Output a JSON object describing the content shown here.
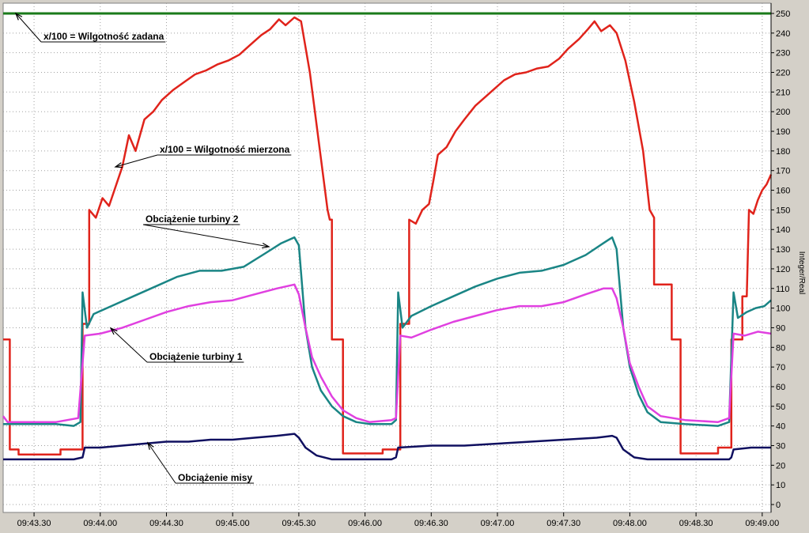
{
  "chart_data": {
    "type": "line",
    "ylabel": "Integer/Real",
    "ylim": [
      0,
      250
    ],
    "yticks": [
      0,
      10,
      20,
      30,
      40,
      50,
      60,
      70,
      80,
      90,
      100,
      110,
      120,
      130,
      140,
      150,
      160,
      170,
      180,
      190,
      200,
      210,
      220,
      230,
      240,
      250
    ],
    "xlim": [
      "09:43:16",
      "09:49:04"
    ],
    "xticks": [
      "09:43.30",
      "09:44.00",
      "09:44.30",
      "09:45.00",
      "09:45.30",
      "09:46.00",
      "09:46.30",
      "09:47.00",
      "09:47.30",
      "09:48.00",
      "09:48.30",
      "09:49.00"
    ],
    "grid": true,
    "colors": {
      "background": "#ffffff",
      "frame": "#d4d0c8",
      "grid": "#a0a0a0",
      "zadana": "#1a7a1a",
      "mierzona": "#e0231b",
      "turbina2": "#1a8585",
      "turbina1": "#e040e0",
      "misy": "#101060",
      "annotation": "#000000"
    },
    "annotations": {
      "zadana": "x/100 = Wilgotność zadana",
      "mierzona": "x/100 = Wilgotność mierzona",
      "turbina2": "Obciążenie turbiny 2",
      "turbina1": "Obciążenie turbiny 1",
      "misy": "Obciążenie misy"
    },
    "series": [
      {
        "key": "zadana",
        "points": [
          [
            "09:43:16",
            250
          ],
          [
            "09:49:04",
            250
          ]
        ]
      },
      {
        "key": "mierzona",
        "points": [
          [
            "09:43:16",
            84
          ],
          [
            "09:43:19",
            84
          ],
          [
            "09:43:19",
            28
          ],
          [
            "09:43:23",
            28
          ],
          [
            "09:43:23",
            25.5
          ],
          [
            "09:43:42",
            25.5
          ],
          [
            "09:43:42",
            28
          ],
          [
            "09:43:52",
            28
          ],
          [
            "09:43:52",
            92
          ],
          [
            "09:43:55",
            92
          ],
          [
            "09:43:55",
            150
          ],
          [
            "09:43:58",
            146
          ],
          [
            "09:44:01",
            156
          ],
          [
            "09:44:04",
            152
          ],
          [
            "09:44:07",
            162
          ],
          [
            "09:44:10",
            172
          ],
          [
            "09:44:13",
            188
          ],
          [
            "09:44:16",
            180
          ],
          [
            "09:44:20",
            196
          ],
          [
            "09:44:24",
            200
          ],
          [
            "09:44:28",
            206
          ],
          [
            "09:44:33",
            211
          ],
          [
            "09:44:38",
            215
          ],
          [
            "09:44:43",
            219
          ],
          [
            "09:44:48",
            221
          ],
          [
            "09:44:53",
            224
          ],
          [
            "09:44:58",
            226
          ],
          [
            "09:45:03",
            229
          ],
          [
            "09:45:08",
            234
          ],
          [
            "09:45:13",
            239
          ],
          [
            "09:45:17",
            242
          ],
          [
            "09:45:21",
            247
          ],
          [
            "09:45:24",
            244
          ],
          [
            "09:45:28",
            248
          ],
          [
            "09:45:31",
            246
          ],
          [
            "09:45:35",
            220
          ],
          [
            "09:45:39",
            185
          ],
          [
            "09:45:43",
            150
          ],
          [
            "09:45:44",
            145
          ],
          [
            "09:45:45",
            145
          ],
          [
            "09:45:45",
            84
          ],
          [
            "09:45:50",
            84
          ],
          [
            "09:45:50",
            26
          ],
          [
            "09:46:08",
            26
          ],
          [
            "09:46:08",
            28
          ],
          [
            "09:46:16",
            28
          ],
          [
            "09:46:16",
            92
          ],
          [
            "09:46:20",
            92
          ],
          [
            "09:46:20",
            145
          ],
          [
            "09:46:23",
            143
          ],
          [
            "09:46:26",
            150
          ],
          [
            "09:46:29",
            153
          ],
          [
            "09:46:31",
            165
          ],
          [
            "09:46:33",
            178
          ],
          [
            "09:46:37",
            182
          ],
          [
            "09:46:41",
            190
          ],
          [
            "09:46:45",
            196
          ],
          [
            "09:46:50",
            203
          ],
          [
            "09:46:54",
            207
          ],
          [
            "09:46:59",
            212
          ],
          [
            "09:47:03",
            216
          ],
          [
            "09:47:08",
            219
          ],
          [
            "09:47:13",
            220
          ],
          [
            "09:47:18",
            222
          ],
          [
            "09:47:23",
            223
          ],
          [
            "09:47:28",
            227
          ],
          [
            "09:47:32",
            232
          ],
          [
            "09:47:37",
            237
          ],
          [
            "09:47:41",
            242
          ],
          [
            "09:47:44",
            246
          ],
          [
            "09:47:47",
            241
          ],
          [
            "09:47:51",
            244
          ],
          [
            "09:47:54",
            240
          ],
          [
            "09:47:58",
            226
          ],
          [
            "09:48:02",
            205
          ],
          [
            "09:48:06",
            180
          ],
          [
            "09:48:09",
            150
          ],
          [
            "09:48:11",
            146
          ],
          [
            "09:48:11",
            112
          ],
          [
            "09:48:19",
            112
          ],
          [
            "09:48:19",
            84
          ],
          [
            "09:48:23",
            84
          ],
          [
            "09:48:23",
            26
          ],
          [
            "09:48:40",
            26
          ],
          [
            "09:48:40",
            29
          ],
          [
            "09:48:46",
            29
          ],
          [
            "09:48:46",
            84
          ],
          [
            "09:48:51",
            84
          ],
          [
            "09:48:51",
            106
          ],
          [
            "09:48:53",
            106
          ],
          [
            "09:48:54",
            150
          ],
          [
            "09:48:56",
            148
          ],
          [
            "09:48:58",
            155
          ],
          [
            "09:49:00",
            160
          ],
          [
            "09:49:02",
            163
          ],
          [
            "09:49:04",
            168
          ]
        ]
      },
      {
        "key": "turbina2",
        "points": [
          [
            "09:43:16",
            41
          ],
          [
            "09:43:40",
            41
          ],
          [
            "09:43:48",
            40
          ],
          [
            "09:43:51",
            42
          ],
          [
            "09:43:52",
            108
          ],
          [
            "09:43:54",
            90
          ],
          [
            "09:43:57",
            97
          ],
          [
            "09:44:05",
            101
          ],
          [
            "09:44:15",
            106
          ],
          [
            "09:44:25",
            111
          ],
          [
            "09:44:35",
            116
          ],
          [
            "09:44:45",
            119
          ],
          [
            "09:44:55",
            119
          ],
          [
            "09:45:05",
            121
          ],
          [
            "09:45:15",
            128
          ],
          [
            "09:45:22",
            133
          ],
          [
            "09:45:28",
            136
          ],
          [
            "09:45:30",
            132
          ],
          [
            "09:45:33",
            90
          ],
          [
            "09:45:36",
            70
          ],
          [
            "09:45:40",
            58
          ],
          [
            "09:45:45",
            50
          ],
          [
            "09:45:50",
            45
          ],
          [
            "09:45:56",
            42
          ],
          [
            "09:46:02",
            41
          ],
          [
            "09:46:12",
            41
          ],
          [
            "09:46:14",
            43
          ],
          [
            "09:46:15",
            108
          ],
          [
            "09:46:17",
            90
          ],
          [
            "09:46:21",
            96
          ],
          [
            "09:46:30",
            101
          ],
          [
            "09:46:40",
            106
          ],
          [
            "09:46:50",
            111
          ],
          [
            "09:47:00",
            115
          ],
          [
            "09:47:10",
            118
          ],
          [
            "09:47:20",
            119
          ],
          [
            "09:47:30",
            122
          ],
          [
            "09:47:40",
            127
          ],
          [
            "09:47:48",
            133
          ],
          [
            "09:47:52",
            136
          ],
          [
            "09:47:54",
            130
          ],
          [
            "09:47:57",
            90
          ],
          [
            "09:48:00",
            70
          ],
          [
            "09:48:04",
            56
          ],
          [
            "09:48:08",
            47
          ],
          [
            "09:48:14",
            42
          ],
          [
            "09:48:25",
            41
          ],
          [
            "09:48:40",
            40
          ],
          [
            "09:48:45",
            42
          ],
          [
            "09:48:47",
            108
          ],
          [
            "09:48:49",
            95
          ],
          [
            "09:48:53",
            98
          ],
          [
            "09:48:57",
            100
          ],
          [
            "09:49:01",
            101
          ],
          [
            "09:49:04",
            104
          ]
        ]
      },
      {
        "key": "turbina1",
        "points": [
          [
            "09:43:16",
            45
          ],
          [
            "09:43:18",
            42
          ],
          [
            "09:43:40",
            42
          ],
          [
            "09:43:50",
            44
          ],
          [
            "09:43:53",
            86
          ],
          [
            "09:44:00",
            87
          ],
          [
            "09:44:10",
            90
          ],
          [
            "09:44:20",
            94
          ],
          [
            "09:44:30",
            98
          ],
          [
            "09:44:40",
            101
          ],
          [
            "09:44:50",
            103
          ],
          [
            "09:45:00",
            104
          ],
          [
            "09:45:10",
            107
          ],
          [
            "09:45:20",
            110
          ],
          [
            "09:45:28",
            112
          ],
          [
            "09:45:30",
            107
          ],
          [
            "09:45:33",
            90
          ],
          [
            "09:45:36",
            75
          ],
          [
            "09:45:40",
            65
          ],
          [
            "09:45:45",
            55
          ],
          [
            "09:45:50",
            48
          ],
          [
            "09:45:56",
            44
          ],
          [
            "09:46:02",
            42
          ],
          [
            "09:46:12",
            43
          ],
          [
            "09:46:14",
            44
          ],
          [
            "09:46:16",
            86
          ],
          [
            "09:46:21",
            85
          ],
          [
            "09:46:30",
            89
          ],
          [
            "09:46:40",
            93
          ],
          [
            "09:46:50",
            96
          ],
          [
            "09:47:00",
            99
          ],
          [
            "09:47:10",
            101
          ],
          [
            "09:47:20",
            101
          ],
          [
            "09:47:30",
            103
          ],
          [
            "09:47:40",
            107
          ],
          [
            "09:47:48",
            110
          ],
          [
            "09:47:52",
            110
          ],
          [
            "09:47:54",
            105
          ],
          [
            "09:47:57",
            90
          ],
          [
            "09:48:00",
            72
          ],
          [
            "09:48:04",
            60
          ],
          [
            "09:48:08",
            50
          ],
          [
            "09:48:14",
            45
          ],
          [
            "09:48:25",
            43
          ],
          [
            "09:48:40",
            42
          ],
          [
            "09:48:45",
            44
          ],
          [
            "09:48:47",
            87
          ],
          [
            "09:48:52",
            86
          ],
          [
            "09:48:58",
            88
          ],
          [
            "09:49:04",
            87
          ]
        ]
      },
      {
        "key": "misy",
        "points": [
          [
            "09:43:16",
            23
          ],
          [
            "09:43:48",
            23
          ],
          [
            "09:43:52",
            24
          ],
          [
            "09:43:53",
            29
          ],
          [
            "09:44:00",
            29
          ],
          [
            "09:44:10",
            30
          ],
          [
            "09:44:20",
            31
          ],
          [
            "09:44:30",
            32
          ],
          [
            "09:44:40",
            32
          ],
          [
            "09:44:50",
            33
          ],
          [
            "09:45:00",
            33
          ],
          [
            "09:45:10",
            34
          ],
          [
            "09:45:20",
            35
          ],
          [
            "09:45:28",
            36
          ],
          [
            "09:45:30",
            34
          ],
          [
            "09:45:33",
            29
          ],
          [
            "09:45:38",
            25
          ],
          [
            "09:45:45",
            23
          ],
          [
            "09:46:12",
            23
          ],
          [
            "09:46:14",
            24
          ],
          [
            "09:46:15",
            29
          ],
          [
            "09:46:30",
            30
          ],
          [
            "09:46:45",
            30
          ],
          [
            "09:47:00",
            31
          ],
          [
            "09:47:15",
            32
          ],
          [
            "09:47:30",
            33
          ],
          [
            "09:47:45",
            34
          ],
          [
            "09:47:52",
            35
          ],
          [
            "09:47:54",
            34
          ],
          [
            "09:47:57",
            28
          ],
          [
            "09:48:02",
            24
          ],
          [
            "09:48:08",
            23
          ],
          [
            "09:48:45",
            23
          ],
          [
            "09:48:46",
            24
          ],
          [
            "09:48:47",
            28
          ],
          [
            "09:48:55",
            29
          ],
          [
            "09:49:04",
            29
          ]
        ]
      }
    ]
  }
}
